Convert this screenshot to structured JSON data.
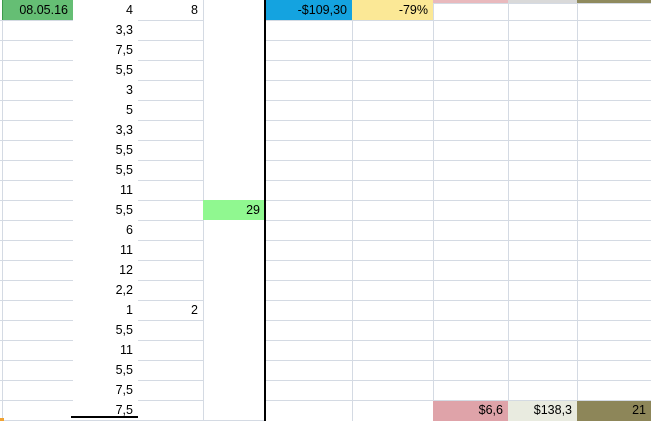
{
  "app": {
    "kind_label": "spreadsheet-grid"
  },
  "colors": {
    "green_date": "#65be74",
    "green_date_edge": "#3d9a4c",
    "light_green": "#90f890",
    "blue": "#14a3e0",
    "yellow": "#fbe896",
    "pink": "#dfa3a9",
    "light_gray_green": "#e9ebe0",
    "olive": "#8d8659",
    "pink_sliver": "#e9b9bd",
    "gray_sliver": "#d9d9d9",
    "olive_sliver": "#8f8a5e",
    "orange": "#f0a232",
    "gridline": "#d4dae3",
    "black": "#000000"
  },
  "sheet": {
    "rows": 21,
    "cells": [
      {
        "col": "B",
        "row": 1,
        "value": "08.05.16",
        "fill": "green_date",
        "left_edge": "green_date_edge"
      },
      {
        "col": "C",
        "row": 1,
        "value": "4"
      },
      {
        "col": "C",
        "row": 2,
        "value": "3,3"
      },
      {
        "col": "C",
        "row": 3,
        "value": "7,5"
      },
      {
        "col": "C",
        "row": 4,
        "value": "5,5"
      },
      {
        "col": "C",
        "row": 5,
        "value": "3"
      },
      {
        "col": "C",
        "row": 6,
        "value": "5"
      },
      {
        "col": "C",
        "row": 7,
        "value": "3,3"
      },
      {
        "col": "C",
        "row": 8,
        "value": "5,5"
      },
      {
        "col": "C",
        "row": 9,
        "value": "5,5"
      },
      {
        "col": "C",
        "row": 10,
        "value": "11"
      },
      {
        "col": "C",
        "row": 11,
        "value": "5,5"
      },
      {
        "col": "C",
        "row": 12,
        "value": "6"
      },
      {
        "col": "C",
        "row": 13,
        "value": "11"
      },
      {
        "col": "C",
        "row": 14,
        "value": "12"
      },
      {
        "col": "C",
        "row": 15,
        "value": "2,2"
      },
      {
        "col": "C",
        "row": 16,
        "value": "1"
      },
      {
        "col": "C",
        "row": 17,
        "value": "5,5"
      },
      {
        "col": "C",
        "row": 18,
        "value": "11"
      },
      {
        "col": "C",
        "row": 19,
        "value": "5,5"
      },
      {
        "col": "C",
        "row": 20,
        "value": "7,5"
      },
      {
        "col": "C",
        "row": 21,
        "value": "7,5"
      },
      {
        "col": "D",
        "row": 1,
        "value": "8"
      },
      {
        "col": "D",
        "row": 16,
        "value": "2"
      },
      {
        "col": "E",
        "row": 11,
        "value": "29",
        "fill": "light_green"
      },
      {
        "col": "F",
        "row": 1,
        "value": "-$109,30",
        "fill": "blue"
      },
      {
        "col": "G",
        "row": 1,
        "value": "-79%",
        "fill": "yellow"
      },
      {
        "col": "H",
        "row": 21,
        "value": "$6,6",
        "fill": "pink"
      },
      {
        "col": "I",
        "row": 21,
        "value": "$138,3",
        "fill": "light_gray_green"
      },
      {
        "col": "J",
        "row": 21,
        "value": "21",
        "fill": "olive"
      }
    ],
    "top_slivers": [
      {
        "col": "H",
        "fill": "pink_sliver"
      },
      {
        "col": "I",
        "fill": "gray_sliver"
      },
      {
        "col": "J",
        "fill": "olive_sliver"
      }
    ],
    "decorations": {
      "orange_corner_fill": "orange",
      "thick_divider_fill": "black",
      "sum_underline_fill": "black"
    }
  }
}
